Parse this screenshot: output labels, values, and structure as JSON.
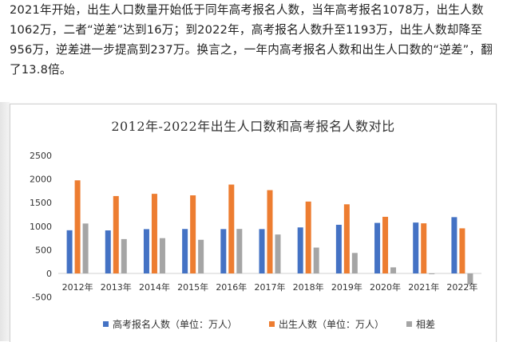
{
  "article": {
    "paragraph": "2021年开始，出生人口数量开始低于同年高考报名人数，当年高考报名1078万，出生人数1062万，二者“逆差”达到16万；到2022年，高考报名人数升至1193万，出生人数却降至956万，逆差进一步提高到237万。换言之，一年内高考报名人数和出生人口数的“逆差”，翻了13.8倍。"
  },
  "chart_data": {
    "type": "bar",
    "title": "2012年-2022年出生人口数和高考报名人数对比",
    "categories": [
      "2012年",
      "2013年",
      "2014年",
      "2015年",
      "2016年",
      "2017年",
      "2018年",
      "2019年",
      "2020年",
      "2021年",
      "2022年"
    ],
    "series": [
      {
        "name": "高考报名人数（单位：万人）",
        "color": "#4472c4",
        "values": [
          915,
          912,
          939,
          942,
          940,
          940,
          975,
          1031,
          1071,
          1078,
          1193
        ]
      },
      {
        "name": "出生人数（单位：万人）",
        "color": "#ed7d31",
        "values": [
          1973,
          1640,
          1687,
          1655,
          1883,
          1765,
          1523,
          1465,
          1200,
          1062,
          956
        ]
      },
      {
        "name": "相差",
        "color": "#a5a5a5",
        "values": [
          1058,
          728,
          748,
          713,
          943,
          825,
          548,
          434,
          129,
          -16,
          -237
        ]
      }
    ],
    "yticks": [
      "2500",
      "2000",
      "1500",
      "1000",
      "500",
      "0",
      "-500"
    ],
    "ylim": [
      -500,
      2500
    ],
    "grid": false,
    "legend": "bottom"
  }
}
